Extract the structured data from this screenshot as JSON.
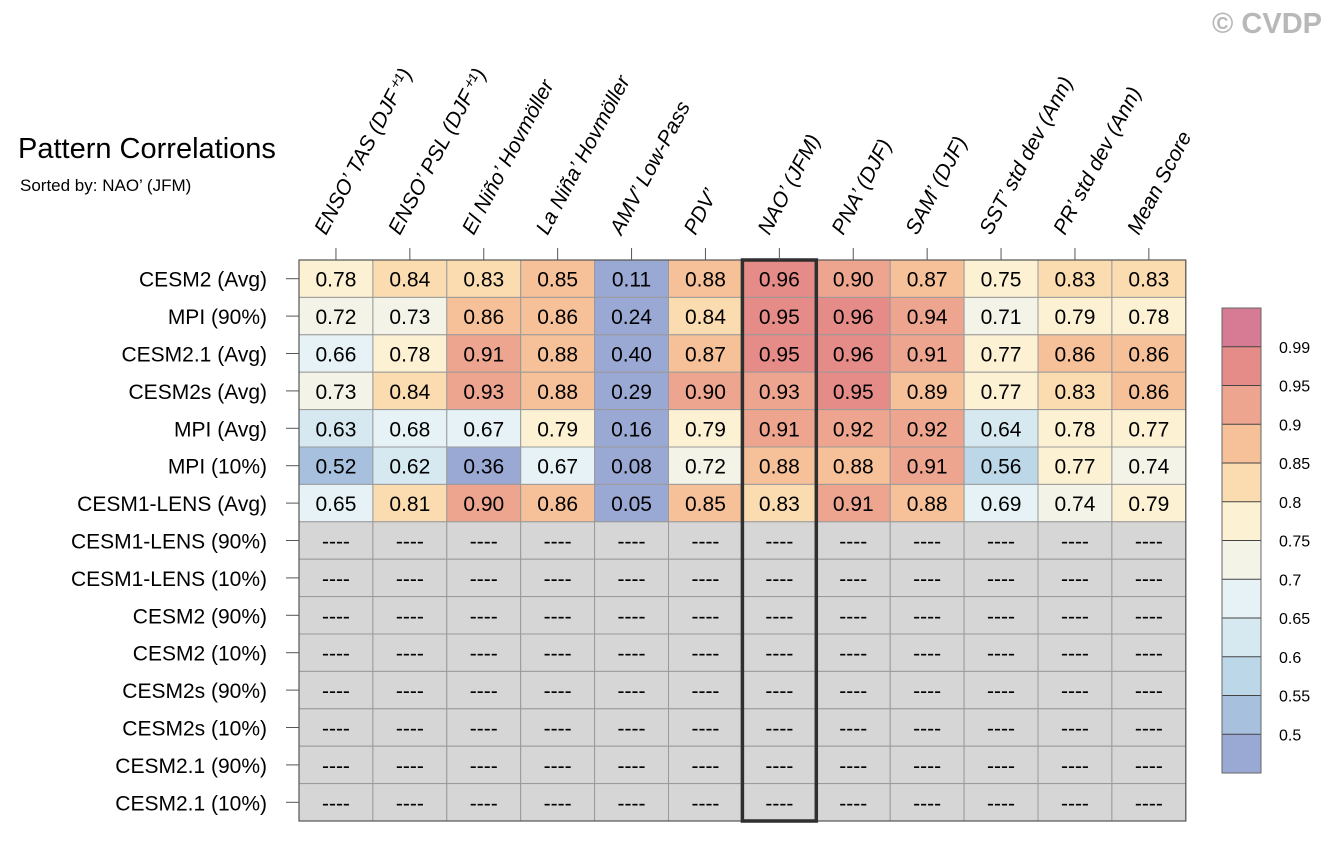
{
  "watermark": "© CVDP",
  "chart_data": {
    "type": "heatmap",
    "title": "Pattern Correlations",
    "subtitle": "Sorted by: NAO’ (JFM)",
    "highlight_column": 6,
    "columns": [
      "ENSO’ TAS (DJF⁺¹)",
      "ENSO’ PSL (DJF⁺¹)",
      "El Niño’ Hovmöller",
      "La Niña’ Hovmöller",
      "AMV’ Low-Pass",
      "PDV’",
      "NAO’ (JFM)",
      "PNA’ (DJF)",
      "SAM’ (DJF)",
      "SST’ std dev (Ann)",
      "PR’ std dev (Ann)",
      "Mean Score"
    ],
    "rows": [
      {
        "label": "CESM2 (Avg)",
        "values": [
          "0.78",
          "0.84",
          "0.83",
          "0.85",
          "0.11",
          "0.88",
          "0.96",
          "0.90",
          "0.87",
          "0.75",
          "0.83",
          "0.83"
        ]
      },
      {
        "label": "MPI (90%)",
        "values": [
          "0.72",
          "0.73",
          "0.86",
          "0.86",
          "0.24",
          "0.84",
          "0.95",
          "0.96",
          "0.94",
          "0.71",
          "0.79",
          "0.78"
        ]
      },
      {
        "label": "CESM2.1 (Avg)",
        "values": [
          "0.66",
          "0.78",
          "0.91",
          "0.88",
          "0.40",
          "0.87",
          "0.95",
          "0.96",
          "0.91",
          "0.77",
          "0.86",
          "0.86"
        ]
      },
      {
        "label": "CESM2s (Avg)",
        "values": [
          "0.73",
          "0.84",
          "0.93",
          "0.88",
          "0.29",
          "0.90",
          "0.93",
          "0.95",
          "0.89",
          "0.77",
          "0.83",
          "0.86"
        ]
      },
      {
        "label": "MPI (Avg)",
        "values": [
          "0.63",
          "0.68",
          "0.67",
          "0.79",
          "0.16",
          "0.79",
          "0.91",
          "0.92",
          "0.92",
          "0.64",
          "0.78",
          "0.77"
        ]
      },
      {
        "label": "MPI (10%)",
        "values": [
          "0.52",
          "0.62",
          "0.36",
          "0.67",
          "0.08",
          "0.72",
          "0.88",
          "0.88",
          "0.91",
          "0.56",
          "0.77",
          "0.74"
        ]
      },
      {
        "label": "CESM1-LENS (Avg)",
        "values": [
          "0.65",
          "0.81",
          "0.90",
          "0.86",
          "0.05",
          "0.85",
          "0.83",
          "0.91",
          "0.88",
          "0.69",
          "0.74",
          "0.79"
        ]
      },
      {
        "label": "CESM1-LENS (90%)",
        "values": [
          "----",
          "----",
          "----",
          "----",
          "----",
          "----",
          "----",
          "----",
          "----",
          "----",
          "----",
          "----"
        ]
      },
      {
        "label": "CESM1-LENS (10%)",
        "values": [
          "----",
          "----",
          "----",
          "----",
          "----",
          "----",
          "----",
          "----",
          "----",
          "----",
          "----",
          "----"
        ]
      },
      {
        "label": "CESM2 (90%)",
        "values": [
          "----",
          "----",
          "----",
          "----",
          "----",
          "----",
          "----",
          "----",
          "----",
          "----",
          "----",
          "----"
        ]
      },
      {
        "label": "CESM2 (10%)",
        "values": [
          "----",
          "----",
          "----",
          "----",
          "----",
          "----",
          "----",
          "----",
          "----",
          "----",
          "----",
          "----"
        ]
      },
      {
        "label": "CESM2s (90%)",
        "values": [
          "----",
          "----",
          "----",
          "----",
          "----",
          "----",
          "----",
          "----",
          "----",
          "----",
          "----",
          "----"
        ]
      },
      {
        "label": "CESM2s (10%)",
        "values": [
          "----",
          "----",
          "----",
          "----",
          "----",
          "----",
          "----",
          "----",
          "----",
          "----",
          "----",
          "----"
        ]
      },
      {
        "label": "CESM2.1 (90%)",
        "values": [
          "----",
          "----",
          "----",
          "----",
          "----",
          "----",
          "----",
          "----",
          "----",
          "----",
          "----",
          "----"
        ]
      },
      {
        "label": "CESM2.1 (10%)",
        "values": [
          "----",
          "----",
          "----",
          "----",
          "----",
          "----",
          "----",
          "----",
          "----",
          "----",
          "----",
          "----"
        ]
      }
    ],
    "missing_color": "#d6d6d6",
    "colorbar": {
      "labels": [
        "0.99",
        "0.95",
        "0.9",
        "0.85",
        "0.8",
        "0.75",
        "0.7",
        "0.65",
        "0.6",
        "0.55",
        "0.5"
      ],
      "thresholds": [
        0.5,
        0.55,
        0.6,
        0.65,
        0.7,
        0.75,
        0.8,
        0.85,
        0.9,
        0.95,
        0.99
      ],
      "colors": [
        "#9aa8d4",
        "#a6c0de",
        "#bcd8e8",
        "#d6e9f1",
        "#e6f2f5",
        "#f3f3e7",
        "#fdf1d3",
        "#fbdcb1",
        "#f6c098",
        "#eea58f",
        "#e58b88",
        "#d67b93"
      ]
    }
  }
}
